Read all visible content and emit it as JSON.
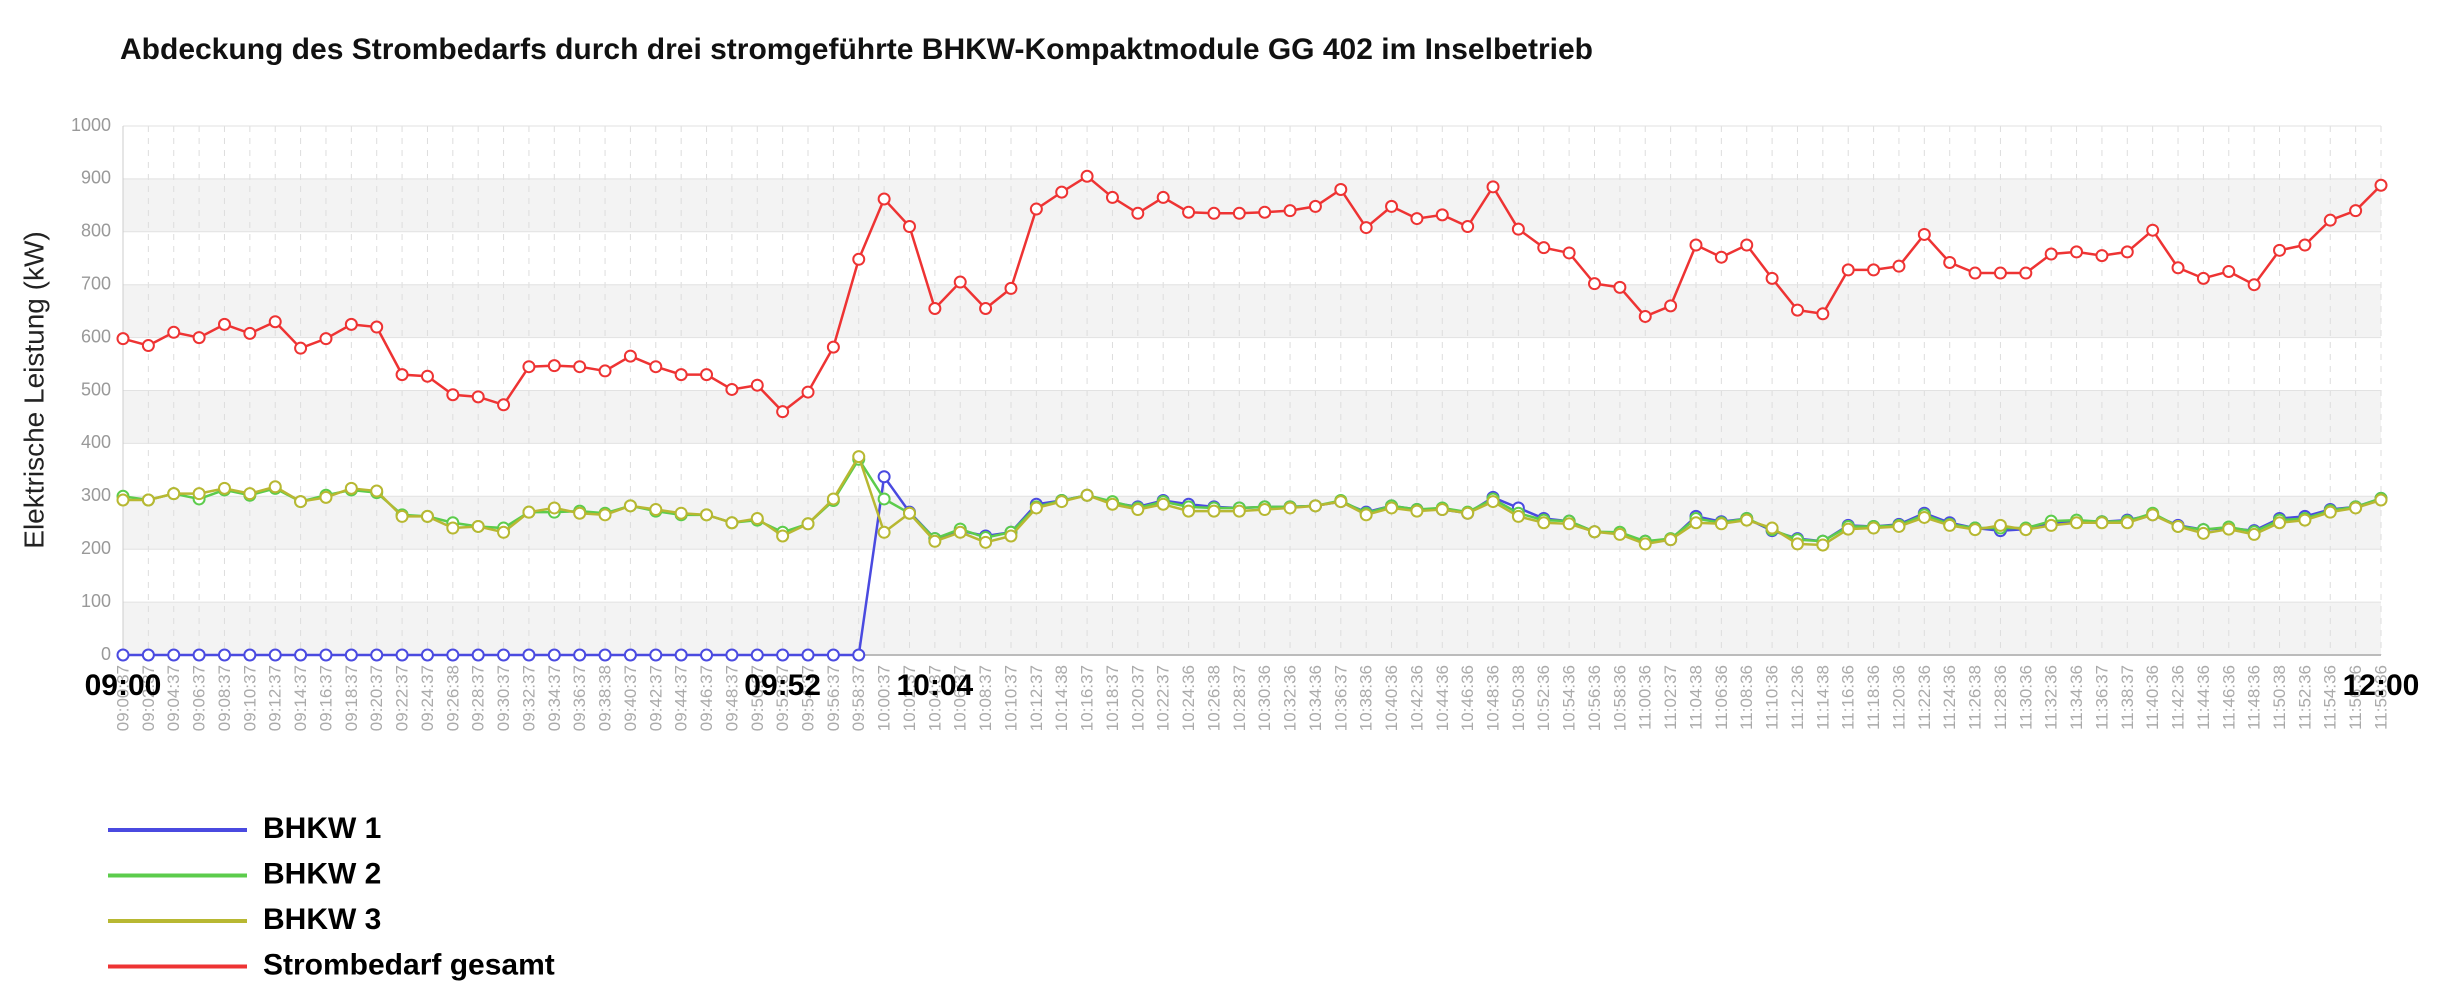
{
  "chart_data": {
    "type": "line",
    "title": "Abdeckung des Strombedarfs durch drei stromgeführte BHKW-Kompaktmodule GG 402  im Inselbetrieb",
    "y_label": "Elektrische Leistung (kW)",
    "categories": [
      "09:00:37",
      "09:02:37",
      "09:04:37",
      "09:06:37",
      "09:08:37",
      "09:10:37",
      "09:12:37",
      "09:14:37",
      "09:16:37",
      "09:18:37",
      "09:20:37",
      "09:22:37",
      "09:24:37",
      "09:26:38",
      "09:28:37",
      "09:30:37",
      "09:32:37",
      "09:34:37",
      "09:36:37",
      "09:38:38",
      "09:40:37",
      "09:42:37",
      "09:44:37",
      "09:46:37",
      "09:48:37",
      "09:50:37",
      "09:52:37",
      "09:54:37",
      "09:56:37",
      "09:58:37",
      "10:00:37",
      "10:02:37",
      "10:04:37",
      "10:06:37",
      "10:08:37",
      "10:10:37",
      "10:12:37",
      "10:14:38",
      "10:16:37",
      "10:18:37",
      "10:20:37",
      "10:22:37",
      "10:24:36",
      "10:26:38",
      "10:28:37",
      "10:30:36",
      "10:32:36",
      "10:34:36",
      "10:36:37",
      "10:38:36",
      "10:40:36",
      "10:42:36",
      "10:44:36",
      "10:46:36",
      "10:48:36",
      "10:50:38",
      "10:52:36",
      "10:54:36",
      "10:56:36",
      "10:58:36",
      "11:00:36",
      "11:02:37",
      "11:04:38",
      "11:06:36",
      "11:08:36",
      "11:10:36",
      "11:12:36",
      "11:14:38",
      "11:16:36",
      "11:18:36",
      "11:20:36",
      "11:22:36",
      "11:24:36",
      "11:26:38",
      "11:28:36",
      "11:30:36",
      "11:32:36",
      "11:34:36",
      "11:36:37",
      "11:38:37",
      "11:40:36",
      "11:42:36",
      "11:44:36",
      "11:46:36",
      "11:48:36",
      "11:50:38",
      "11:52:36",
      "11:54:36",
      "11:56:36",
      "11:58:36"
    ],
    "series": [
      {
        "name": "BHKW 1",
        "color": "#4a4ae0",
        "values": [
          0,
          0,
          0,
          0,
          0,
          0,
          0,
          0,
          0,
          0,
          0,
          0,
          0,
          0,
          0,
          0,
          0,
          0,
          0,
          0,
          0,
          0,
          0,
          0,
          0,
          0,
          0,
          0,
          0,
          0,
          337,
          270,
          220,
          235,
          225,
          232,
          285,
          292,
          302,
          288,
          280,
          292,
          285,
          280,
          278,
          280,
          280,
          282,
          290,
          270,
          282,
          275,
          275,
          268,
          298,
          278,
          258,
          253,
          233,
          230,
          215,
          218,
          262,
          252,
          258,
          235,
          220,
          215,
          245,
          243,
          247,
          268,
          250,
          240,
          235,
          238,
          250,
          253,
          252,
          255,
          265,
          245,
          237,
          240,
          235,
          258,
          262,
          275,
          280,
          296
        ]
      },
      {
        "name": "BHKW 2",
        "color": "#5ccc4c",
        "values": [
          300,
          293,
          305,
          295,
          312,
          302,
          315,
          290,
          302,
          312,
          307,
          265,
          262,
          250,
          243,
          240,
          270,
          270,
          272,
          268,
          282,
          272,
          265,
          265,
          250,
          255,
          232,
          248,
          292,
          370,
          295,
          268,
          220,
          238,
          222,
          232,
          280,
          292,
          302,
          290,
          278,
          290,
          280,
          278,
          278,
          280,
          280,
          282,
          292,
          268,
          282,
          275,
          278,
          270,
          295,
          268,
          255,
          253,
          233,
          232,
          215,
          220,
          258,
          250,
          258,
          237,
          218,
          215,
          243,
          243,
          245,
          265,
          247,
          240,
          240,
          240,
          253,
          255,
          252,
          253,
          268,
          243,
          237,
          242,
          233,
          255,
          258,
          273,
          280,
          296
        ]
      },
      {
        "name": "BHKW 3",
        "color": "#b8b832",
        "values": [
          293,
          293,
          305,
          305,
          315,
          305,
          318,
          290,
          298,
          315,
          310,
          262,
          262,
          240,
          243,
          232,
          270,
          278,
          268,
          265,
          282,
          275,
          268,
          265,
          250,
          258,
          225,
          248,
          295,
          375,
          232,
          268,
          215,
          232,
          213,
          225,
          278,
          290,
          302,
          285,
          275,
          285,
          272,
          272,
          272,
          275,
          278,
          282,
          290,
          265,
          278,
          272,
          275,
          268,
          290,
          262,
          250,
          248,
          233,
          228,
          210,
          218,
          250,
          248,
          255,
          240,
          210,
          208,
          238,
          240,
          243,
          260,
          245,
          237,
          245,
          237,
          245,
          250,
          250,
          250,
          265,
          243,
          230,
          238,
          228,
          250,
          255,
          270,
          278,
          293
        ]
      },
      {
        "name": "Strombedarf gesamt",
        "color": "#ee3333",
        "values": [
          598,
          585,
          610,
          600,
          625,
          608,
          630,
          580,
          598,
          625,
          620,
          530,
          527,
          492,
          488,
          473,
          545,
          547,
          545,
          537,
          565,
          545,
          530,
          530,
          502,
          510,
          460,
          497,
          582,
          748,
          862,
          810,
          655,
          705,
          655,
          693,
          843,
          875,
          905,
          865,
          835,
          865,
          837,
          835,
          835,
          837,
          840,
          848,
          880,
          808,
          848,
          825,
          832,
          810,
          885,
          805,
          770,
          760,
          702,
          695,
          640,
          660,
          775,
          752,
          775,
          712,
          652,
          645,
          728,
          728,
          735,
          795,
          742,
          722,
          722,
          722,
          758,
          762,
          755,
          762,
          803,
          732,
          712,
          725,
          700,
          765,
          775,
          822,
          840,
          888
        ]
      }
    ],
    "annotations": [
      {
        "text": "09:00",
        "at": "09:00:37"
      },
      {
        "text": "09:52",
        "at": "09:52:37"
      },
      {
        "text": "10:04",
        "at": "10:04:37"
      },
      {
        "text": "12:00",
        "at": "11:58:36"
      }
    ],
    "ylim": [
      0,
      1000
    ],
    "yticks": [
      0,
      100,
      200,
      300,
      400,
      500,
      600,
      700,
      800,
      900,
      1000
    ],
    "grid": true
  }
}
